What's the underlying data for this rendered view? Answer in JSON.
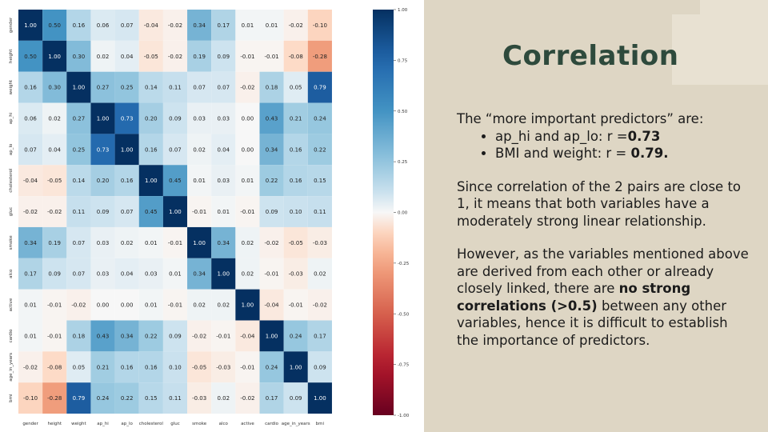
{
  "slide": {
    "title": "Correlation",
    "intro": "The “more important predictors” are:",
    "bullets": [
      {
        "text": "ap_hi and ap_lo: r =",
        "bold": "0.73"
      },
      {
        "text": "BMI and weight: r = ",
        "bold": "0.79."
      }
    ],
    "para1": "Since correlation of the 2 pairs are close to 1, it means that both variables have a moderately strong linear relationship.",
    "para2_pre": "However, as the variables mentioned above are derived from each other or already closely linked, there are ",
    "para2_bold": "no strong correlations (>0.5)",
    "para2_post": " between any other variables, hence it is difficult to establish the importance of predictors."
  },
  "colors": {
    "background": "#ded6c4",
    "title": "#2e4a3c",
    "colormap": "RdBu"
  },
  "chart_data": {
    "type": "heatmap",
    "variables": [
      "gender",
      "height",
      "weight",
      "ap_hi",
      "ap_lo",
      "cholesterol",
      "gluc",
      "smoke",
      "alco",
      "active",
      "cardio",
      "age_in_years",
      "bmi"
    ],
    "values": [
      [
        1.0,
        0.5,
        0.16,
        0.06,
        0.07,
        -0.04,
        -0.02,
        0.34,
        0.17,
        0.01,
        0.01,
        -0.02,
        -0.1
      ],
      [
        0.5,
        1.0,
        0.3,
        0.02,
        0.04,
        -0.05,
        -0.02,
        0.19,
        0.09,
        -0.01,
        -0.01,
        -0.08,
        -0.28
      ],
      [
        0.16,
        0.3,
        1.0,
        0.27,
        0.25,
        0.14,
        0.11,
        0.07,
        0.07,
        -0.02,
        0.18,
        0.05,
        0.79
      ],
      [
        0.06,
        0.02,
        0.27,
        1.0,
        0.73,
        0.2,
        0.09,
        0.03,
        0.03,
        -0.0,
        0.43,
        0.21,
        0.24
      ],
      [
        0.07,
        0.04,
        0.25,
        0.73,
        1.0,
        0.16,
        0.07,
        0.02,
        0.04,
        -0.0,
        0.34,
        0.16,
        0.22
      ],
      [
        -0.04,
        -0.05,
        0.14,
        0.2,
        0.16,
        1.0,
        0.45,
        0.01,
        0.03,
        0.01,
        0.22,
        0.16,
        0.15
      ],
      [
        -0.02,
        -0.02,
        0.11,
        0.09,
        0.07,
        0.45,
        1.0,
        -0.01,
        0.01,
        -0.01,
        0.09,
        0.1,
        0.11
      ],
      [
        0.34,
        0.19,
        0.07,
        0.03,
        0.02,
        0.01,
        -0.01,
        1.0,
        0.34,
        0.02,
        -0.02,
        -0.05,
        -0.03
      ],
      [
        0.17,
        0.09,
        0.07,
        0.03,
        0.04,
        0.03,
        0.01,
        0.34,
        1.0,
        0.02,
        -0.01,
        -0.03,
        0.02
      ],
      [
        0.01,
        -0.01,
        -0.02,
        -0.0,
        -0.0,
        0.01,
        -0.01,
        0.02,
        0.02,
        1.0,
        -0.04,
        -0.01,
        -0.02
      ],
      [
        0.01,
        -0.01,
        0.18,
        0.43,
        0.34,
        0.22,
        0.09,
        -0.02,
        -0.01,
        -0.04,
        1.0,
        0.24,
        0.17
      ],
      [
        -0.02,
        -0.08,
        0.05,
        0.21,
        0.16,
        0.16,
        0.1,
        -0.05,
        -0.03,
        -0.01,
        0.24,
        1.0,
        0.09
      ],
      [
        -0.1,
        -0.28,
        0.79,
        0.24,
        0.22,
        0.15,
        0.11,
        -0.03,
        0.02,
        -0.02,
        0.17,
        0.09,
        1.0
      ]
    ],
    "colorbar_ticks": [
      "1.00",
      "0.75",
      "0.50",
      "0.25",
      "0.00",
      "-0.25",
      "-0.50",
      "-0.75",
      "-1.00"
    ],
    "colorbar_range": [
      -1,
      1
    ]
  }
}
